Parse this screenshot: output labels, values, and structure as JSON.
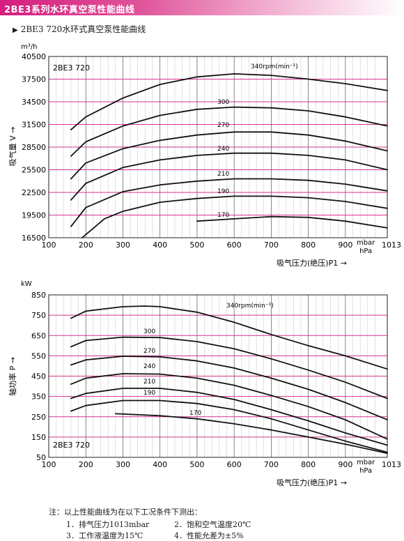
{
  "banner": {
    "title": "2BE3系列水环真空泵性能曲线"
  },
  "subtitle": "2BE3 720水环式真空泵性能曲线",
  "colors": {
    "grid_major": "#d6338a",
    "grid_minor": "#555555",
    "curve": "#111111",
    "banner": "#d61d7f"
  },
  "chart_data": [
    {
      "type": "line",
      "unit_label": "m³/h",
      "ylabel": "吸气量 V →",
      "xlabel": "吸气压力(绝压)P1 →",
      "x_unit_label": "mbar\nhPa",
      "model_label": "2BE3 720",
      "xlim": [
        100,
        1013
      ],
      "ylim": [
        16500,
        40500
      ],
      "x_ticks": [
        "100",
        "200",
        "300",
        "400",
        "500",
        "600",
        "700",
        "800",
        "900",
        "1013"
      ],
      "y_ticks": [
        "16500",
        "19500",
        "22500",
        "25500",
        "28500",
        "31500",
        "34500",
        "37500",
        "40500"
      ],
      "y_tick_values": [
        16500,
        19500,
        22500,
        25500,
        28500,
        31500,
        34500,
        37500,
        40500
      ],
      "grid": true,
      "series": [
        {
          "name": "340rpm(min⁻¹)",
          "x": [
            160,
            200,
            300,
            400,
            500,
            600,
            700,
            800,
            900,
            1013
          ],
          "y": [
            30800,
            32500,
            35000,
            36800,
            37800,
            38200,
            38000,
            37500,
            36900,
            36000
          ]
        },
        {
          "name": "300",
          "x": [
            160,
            200,
            300,
            400,
            500,
            600,
            700,
            800,
            900,
            1013
          ],
          "y": [
            27300,
            29200,
            31300,
            32700,
            33500,
            33800,
            33700,
            33300,
            32500,
            31300
          ]
        },
        {
          "name": "270",
          "x": [
            160,
            200,
            300,
            400,
            500,
            600,
            700,
            800,
            900,
            1013
          ],
          "y": [
            24300,
            26400,
            28300,
            29400,
            30100,
            30500,
            30500,
            30100,
            29300,
            28000
          ]
        },
        {
          "name": "240",
          "x": [
            160,
            200,
            300,
            400,
            500,
            600,
            700,
            800,
            900,
            1013
          ],
          "y": [
            21500,
            23700,
            25800,
            26800,
            27400,
            27700,
            27700,
            27400,
            26800,
            25500
          ]
        },
        {
          "name": "210",
          "x": [
            160,
            200,
            300,
            400,
            500,
            600,
            700,
            800,
            900,
            1013
          ],
          "y": [
            18000,
            20500,
            22600,
            23500,
            24000,
            24300,
            24300,
            24100,
            23600,
            22700
          ]
        },
        {
          "name": "190",
          "x": [
            190,
            250,
            300,
            400,
            500,
            600,
            700,
            800,
            900,
            1013
          ],
          "y": [
            16500,
            19000,
            20000,
            21200,
            21700,
            22000,
            22000,
            21800,
            21300,
            20400
          ]
        },
        {
          "name": "170",
          "x": [
            500,
            600,
            700,
            800,
            900,
            1013
          ],
          "y": [
            18700,
            19000,
            19300,
            19200,
            18700,
            17800
          ]
        }
      ]
    },
    {
      "type": "line",
      "unit_label": "kW",
      "ylabel": "轴功率 P →",
      "xlabel": "吸气压力(绝压)P1 →",
      "x_unit_label": "mbar\nhPa",
      "model_label": "2BE3 720",
      "xlim": [
        100,
        1013
      ],
      "ylim": [
        50,
        850
      ],
      "x_ticks": [
        "100",
        "200",
        "300",
        "400",
        "500",
        "600",
        "700",
        "800",
        "900",
        "1013"
      ],
      "y_ticks": [
        "50",
        "150",
        "250",
        "350",
        "450",
        "550",
        "650",
        "750",
        "850"
      ],
      "y_tick_values": [
        50,
        150,
        250,
        350,
        450,
        550,
        650,
        750,
        850
      ],
      "grid": true,
      "series": [
        {
          "name": "340rpm(min⁻¹)",
          "x": [
            160,
            200,
            300,
            360,
            400,
            500,
            600,
            700,
            800,
            900,
            1013
          ],
          "y": [
            735,
            770,
            792,
            795,
            792,
            765,
            715,
            655,
            600,
            550,
            485
          ]
        },
        {
          "name": "300",
          "x": [
            160,
            200,
            300,
            400,
            500,
            600,
            700,
            800,
            900,
            1013
          ],
          "y": [
            595,
            625,
            642,
            640,
            620,
            585,
            535,
            480,
            420,
            340
          ]
        },
        {
          "name": "270",
          "x": [
            160,
            200,
            300,
            400,
            500,
            600,
            700,
            800,
            900,
            1013
          ],
          "y": [
            505,
            530,
            548,
            545,
            525,
            490,
            440,
            385,
            320,
            235
          ]
        },
        {
          "name": "240",
          "x": [
            160,
            200,
            300,
            400,
            500,
            600,
            700,
            800,
            900,
            1013
          ],
          "y": [
            410,
            440,
            462,
            460,
            440,
            405,
            355,
            300,
            235,
            140
          ]
        },
        {
          "name": "210",
          "x": [
            160,
            200,
            300,
            400,
            500,
            600,
            700,
            800,
            900,
            1013
          ],
          "y": [
            340,
            365,
            390,
            390,
            370,
            335,
            285,
            230,
            170,
            110
          ]
        },
        {
          "name": "190",
          "x": [
            160,
            200,
            300,
            400,
            500,
            600,
            700,
            800,
            900,
            1013
          ],
          "y": [
            278,
            305,
            330,
            330,
            315,
            285,
            240,
            185,
            130,
            75
          ]
        },
        {
          "name": "170",
          "x": [
            280,
            400,
            500,
            600,
            700,
            800,
            900,
            1013
          ],
          "y": [
            265,
            255,
            240,
            215,
            185,
            150,
            115,
            70
          ]
        }
      ]
    }
  ],
  "notes": {
    "heading": "注：以上性能曲线为在以下工况条件下测出：",
    "items": [
      "1．排气压力1013mbar",
      "2．饱和空气温度20℃",
      "3．工作液温度为15℃",
      "4．性能允差为±5%"
    ]
  }
}
